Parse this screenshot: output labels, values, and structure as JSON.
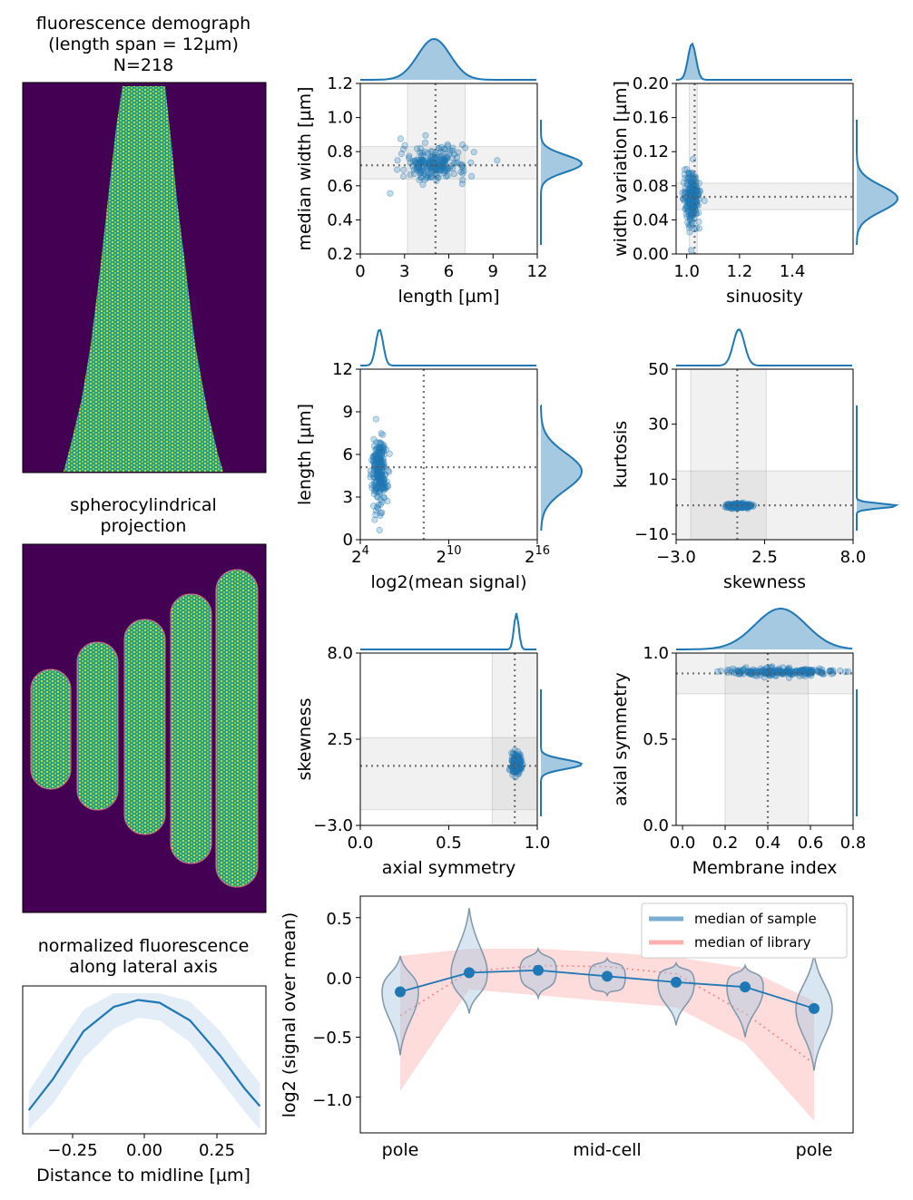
{
  "figure": {
    "background": "#ffffff",
    "accent": "#1f77b4",
    "library_color": "#ff9c9c",
    "heatmap_bg": "#440154"
  },
  "demograph": {
    "title_lines": [
      "fluorescence demograph",
      "(length span = 12µm)",
      "N=218"
    ]
  },
  "projection": {
    "title_lines": [
      "spherocylindrical",
      "projection"
    ]
  },
  "lateral": {
    "title_lines": [
      "normalized fluorescence",
      "along lateral axis"
    ],
    "xlabel": "Distance to midline [µm]",
    "xticks": [
      "−0.25",
      "0.00",
      "0.25"
    ]
  },
  "violin": {
    "ylabel": "log2 (signal over mean)",
    "yticks": [
      "0.5",
      "0.0",
      "−0.5",
      "−1.0"
    ],
    "xlabels": [
      "pole",
      "mid-cell",
      "pole"
    ],
    "legend": [
      "median of sample",
      "median of library"
    ]
  },
  "chart_data": [
    {
      "type": "scatter",
      "name": "length-vs-width",
      "xlabel": "length [µm]",
      "ylabel": "median width [µm]",
      "xlim": [
        0,
        12
      ],
      "ylim": [
        0.2,
        1.2
      ],
      "xticks": [
        "0",
        "3",
        "6",
        "9",
        "12"
      ],
      "yticks": [
        "0.2",
        "0.4",
        "0.6",
        "0.8",
        "1.0",
        "1.2"
      ],
      "median": [
        5.1,
        0.72
      ],
      "x_band": [
        3.2,
        7.1
      ],
      "y_band": [
        0.64,
        0.83
      ],
      "cloud": {
        "x_center": 5.0,
        "x_spread": 1.1,
        "y_center": 0.73,
        "y_spread": 0.05,
        "n": 218
      }
    },
    {
      "type": "scatter",
      "name": "sinuosity-vs-width-variation",
      "xlabel": "sinuosity",
      "ylabel": "width variation [µm]",
      "xlim": [
        0.96,
        1.63
      ],
      "ylim": [
        0.0,
        0.2
      ],
      "xticks": [
        "1.0",
        "1.2",
        "1.4"
      ],
      "yticks": [
        "0.00",
        "0.04",
        "0.08",
        "0.12",
        "0.16",
        "0.20"
      ],
      "median": [
        1.03,
        0.067
      ],
      "x_band": [
        1.01,
        1.04
      ],
      "y_band": [
        0.052,
        0.083
      ],
      "cloud": {
        "x_center": 1.02,
        "x_spread": 0.015,
        "y_center": 0.065,
        "y_spread": 0.015,
        "n": 218
      }
    },
    {
      "type": "scatter",
      "name": "mean-signal-vs-length",
      "xlabel": "log2(mean signal)",
      "ylabel": "length [µm]",
      "xlim": [
        4,
        16
      ],
      "ylim": [
        0,
        12
      ],
      "xticks": [
        "4",
        "10",
        "16"
      ],
      "yticks": [
        "0",
        "3",
        "6",
        "9",
        "12"
      ],
      "median": [
        8.3,
        5.1
      ],
      "cloud": {
        "x_center": 5.3,
        "x_spread": 0.25,
        "y_center": 4.8,
        "y_spread": 1.3,
        "n": 218
      }
    },
    {
      "type": "scatter",
      "name": "skewness-vs-kurtosis",
      "xlabel": "skewness",
      "ylabel": "kurtosis",
      "xlim": [
        -3.0,
        8.0
      ],
      "ylim": [
        -12,
        50
      ],
      "xticks": [
        "−3.0",
        "2.5",
        "8.0"
      ],
      "yticks": [
        "−10",
        "10",
        "30",
        "50"
      ],
      "median": [
        0.8,
        0.5
      ],
      "x_band": [
        -2.1,
        2.6
      ],
      "y_band": [
        -12,
        13
      ],
      "cloud": {
        "x_center": 0.9,
        "x_spread": 0.35,
        "y_center": 0.3,
        "y_spread": 0.4,
        "n": 218
      }
    },
    {
      "type": "scatter",
      "name": "axial-symmetry-vs-skewness",
      "xlabel": "axial symmetry",
      "ylabel": "skewness",
      "xlim": [
        0.0,
        1.1
      ],
      "ylim": [
        -3.0,
        8.0
      ],
      "xticks": [
        "0.0",
        "0.5",
        "1.0"
      ],
      "yticks": [
        "−3.0",
        "2.5",
        "8.0"
      ],
      "median": [
        0.96,
        0.8
      ],
      "x_band": [
        0.82,
        1.1
      ],
      "y_band": [
        -2.0,
        2.6
      ],
      "cloud": {
        "x_center": 0.97,
        "x_spread": 0.015,
        "y_center": 0.9,
        "y_spread": 0.3,
        "n": 218
      }
    },
    {
      "type": "scatter",
      "name": "membrane-index-vs-axial-symmetry",
      "xlabel": "Membrane index",
      "ylabel": "axial symmetry",
      "xlim": [
        -0.03,
        0.8
      ],
      "ylim": [
        0.0,
        1.1
      ],
      "xticks": [
        "0.0",
        "0.2",
        "0.4",
        "0.6",
        "0.8"
      ],
      "yticks": [
        "0.0",
        "0.5",
        "1.0"
      ],
      "median": [
        0.4,
        0.97
      ],
      "x_band": [
        0.2,
        0.59
      ],
      "y_band": [
        0.84,
        1.1
      ],
      "cloud": {
        "x_center": 0.46,
        "x_spread": 0.12,
        "y_center": 0.98,
        "y_spread": 0.012,
        "n": 218
      }
    },
    {
      "type": "violin",
      "name": "longitudinal-profile",
      "positions": 7,
      "sample_median": [
        -0.12,
        0.04,
        0.06,
        0.01,
        -0.04,
        -0.08,
        -0.26
      ],
      "violin_ranges": [
        [
          -0.65,
          0.18
        ],
        [
          -0.3,
          0.58
        ],
        [
          -0.17,
          0.24
        ],
        [
          -0.15,
          0.16
        ],
        [
          -0.4,
          0.12
        ],
        [
          -0.5,
          0.1
        ],
        [
          -0.78,
          0.2
        ]
      ],
      "library_median": [
        -0.32,
        0.05,
        0.1,
        0.09,
        0.03,
        -0.3,
        -0.72
      ],
      "library_low": [
        -0.95,
        -0.1,
        -0.15,
        -0.2,
        -0.25,
        -0.55,
        -1.2
      ],
      "library_high": [
        0.18,
        0.24,
        0.24,
        0.21,
        0.17,
        0.08,
        -0.2
      ],
      "ylim": [
        -1.3,
        0.68
      ]
    },
    {
      "type": "line",
      "name": "lateral-profile",
      "x": [
        -0.38,
        -0.3,
        -0.2,
        -0.1,
        -0.02,
        0.05,
        0.15,
        0.25,
        0.33,
        0.38
      ],
      "y": [
        0.14,
        0.37,
        0.72,
        0.9,
        0.95,
        0.93,
        0.8,
        0.54,
        0.3,
        0.17
      ],
      "band_low": [
        0.0,
        0.19,
        0.52,
        0.74,
        0.82,
        0.8,
        0.64,
        0.36,
        0.13,
        0.0
      ],
      "band_high": [
        0.28,
        0.55,
        0.88,
        1.0,
        1.0,
        1.0,
        0.94,
        0.72,
        0.48,
        0.34
      ],
      "xlim": [
        -0.4,
        0.4
      ]
    }
  ]
}
